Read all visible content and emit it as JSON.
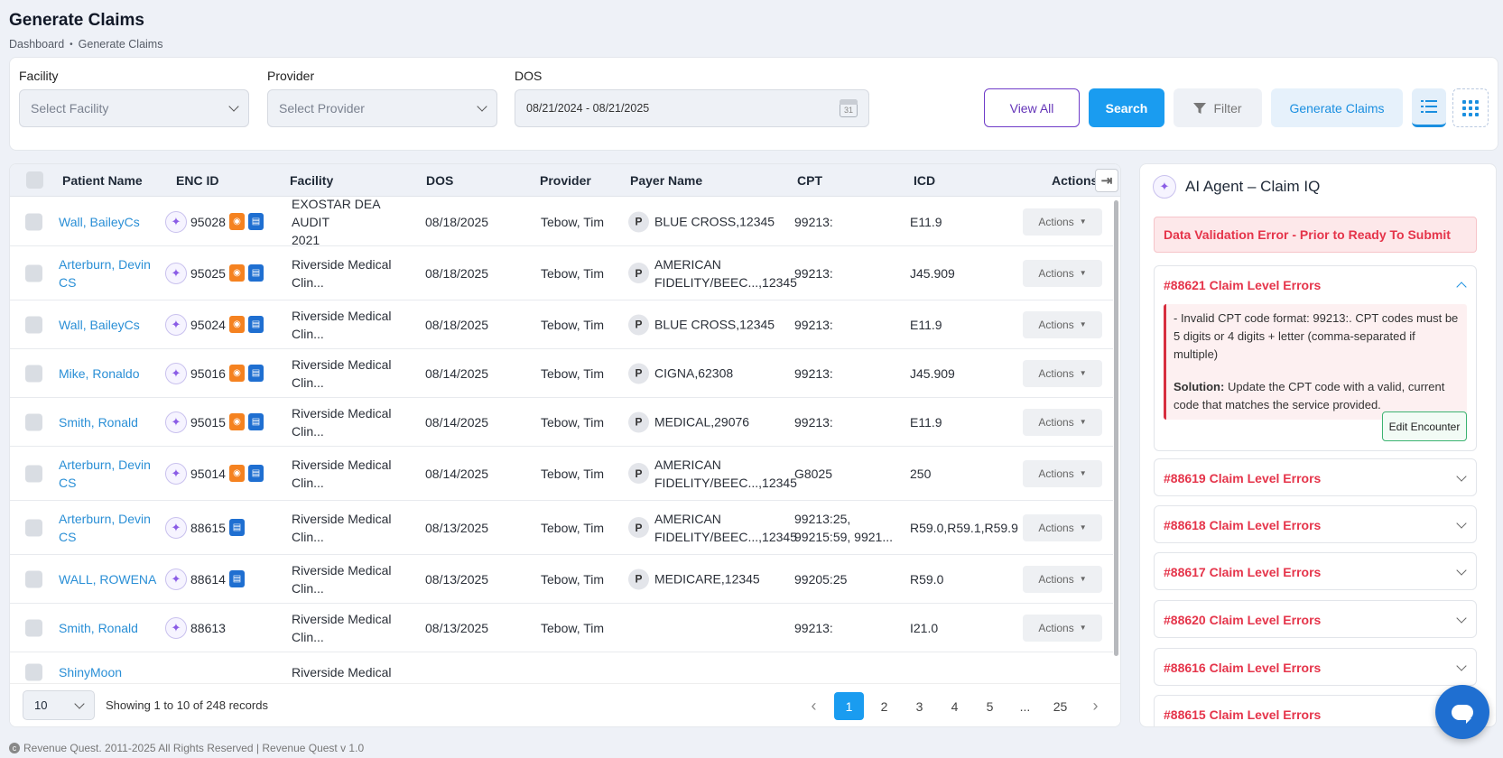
{
  "page": {
    "title": "Generate Claims",
    "breadcrumb": [
      "Dashboard",
      "Generate Claims"
    ]
  },
  "filters": {
    "facility": {
      "label": "Facility",
      "placeholder": "Select Facility"
    },
    "provider": {
      "label": "Provider",
      "placeholder": "Select Provider"
    },
    "dos": {
      "label": "DOS",
      "value": "08/21/2024 - 08/21/2025",
      "calendar_day": "31"
    },
    "buttons": {
      "view_all": "View All",
      "search": "Search",
      "filter": "Filter",
      "generate_claims": "Generate Claims"
    }
  },
  "table": {
    "headers": [
      "Patient Name",
      "ENC ID",
      "Facility",
      "DOS",
      "Provider",
      "Payer Name",
      "CPT",
      "ICD",
      "Actions"
    ],
    "action_label": "Actions",
    "rows": [
      {
        "patient": [
          "Wall, BaileyCs"
        ],
        "enc": "95028",
        "icons": [
          "orange",
          "blue"
        ],
        "facility": [
          "EXOSTAR DEA AUDIT",
          "2021"
        ],
        "dos": "08/18/2025",
        "provider": "Tebow, Tim",
        "payer": [
          "BLUE CROSS,12345"
        ],
        "cpt": [
          "99213:"
        ],
        "icd": "E11.9"
      },
      {
        "patient": [
          "Arterburn, Devin",
          "CS"
        ],
        "enc": "95025",
        "icons": [
          "orange",
          "blue"
        ],
        "facility": [
          "Riverside Medical",
          "Clin..."
        ],
        "dos": "08/18/2025",
        "provider": "Tebow, Tim",
        "payer": [
          "AMERICAN",
          "FIDELITY/BEEC...,12345"
        ],
        "cpt": [
          "99213:"
        ],
        "icd": "J45.909"
      },
      {
        "patient": [
          "Wall, BaileyCs"
        ],
        "enc": "95024",
        "icons": [
          "orange",
          "blue"
        ],
        "facility": [
          "Riverside Medical",
          "Clin..."
        ],
        "dos": "08/18/2025",
        "provider": "Tebow, Tim",
        "payer": [
          "BLUE CROSS,12345"
        ],
        "cpt": [
          "99213:"
        ],
        "icd": "E11.9"
      },
      {
        "patient": [
          "Mike, Ronaldo"
        ],
        "enc": "95016",
        "icons": [
          "orange",
          "blue"
        ],
        "facility": [
          "Riverside Medical",
          "Clin..."
        ],
        "dos": "08/14/2025",
        "provider": "Tebow, Tim",
        "payer": [
          "CIGNA,62308"
        ],
        "cpt": [
          "99213:"
        ],
        "icd": "J45.909"
      },
      {
        "patient": [
          "Smith, Ronald"
        ],
        "enc": "95015",
        "icons": [
          "orange",
          "blue"
        ],
        "facility": [
          "Riverside Medical",
          "Clin..."
        ],
        "dos": "08/14/2025",
        "provider": "Tebow, Tim",
        "payer": [
          "MEDICAL,29076"
        ],
        "cpt": [
          "99213:"
        ],
        "icd": "E11.9"
      },
      {
        "patient": [
          "Arterburn, Devin",
          "CS"
        ],
        "enc": "95014",
        "icons": [
          "orange",
          "blue"
        ],
        "facility": [
          "Riverside Medical",
          "Clin..."
        ],
        "dos": "08/14/2025",
        "provider": "Tebow, Tim",
        "payer": [
          "AMERICAN",
          "FIDELITY/BEEC...,12345"
        ],
        "cpt": [
          "G8025"
        ],
        "icd": "250"
      },
      {
        "patient": [
          "Arterburn, Devin",
          "CS"
        ],
        "enc": "88615",
        "icons": [
          "blue"
        ],
        "facility": [
          "Riverside Medical",
          "Clin..."
        ],
        "dos": "08/13/2025",
        "provider": "Tebow, Tim",
        "payer": [
          "AMERICAN",
          "FIDELITY/BEEC...,12345"
        ],
        "cpt": [
          "99213:25,",
          "99215:59, 9921..."
        ],
        "icd": "R59.0,R59.1,R59.9"
      },
      {
        "patient": [
          "WALL, ROWENA"
        ],
        "enc": "88614",
        "icons": [
          "blue"
        ],
        "facility": [
          "Riverside Medical",
          "Clin..."
        ],
        "dos": "08/13/2025",
        "provider": "Tebow, Tim",
        "payer": [
          "MEDICARE,12345"
        ],
        "cpt": [
          "99205:25"
        ],
        "icd": "R59.0"
      },
      {
        "patient": [
          "Smith, Ronald"
        ],
        "enc": "88613",
        "icons": [],
        "facility": [
          "Riverside Medical",
          "Clin..."
        ],
        "dos": "08/13/2025",
        "provider": "Tebow, Tim",
        "payer": [],
        "cpt": [
          "99213:"
        ],
        "icd": "I21.0"
      },
      {
        "patient": [
          "ShinyMoon"
        ],
        "enc": "",
        "icons": [],
        "facility": [
          "Riverside Medical"
        ],
        "dos": "",
        "provider": "",
        "payer": [],
        "cpt": [],
        "icd": ""
      }
    ],
    "footer": {
      "page_size": "10",
      "showing": "Showing 1 to 10 of 248 records",
      "pages": [
        "1",
        "2",
        "3",
        "4",
        "5",
        "...",
        "25"
      ],
      "active_page": "1"
    }
  },
  "ai_panel": {
    "title": "AI Agent – Claim IQ",
    "alert": "Data Validation Error - Prior to Ready To Submit",
    "expanded": {
      "title": "#88621 Claim Level Errors",
      "error": "- Invalid CPT code format: 99213:. CPT codes must be 5 digits or 4 digits + letter (comma-separated if multiple)",
      "solution_label": "Solution:",
      "solution": " Update the CPT code with a valid, current code that matches the service provided.",
      "edit_button": "Edit Encounter"
    },
    "collapsed": [
      "#88619 Claim Level Errors",
      "#88618 Claim Level Errors",
      "#88617 Claim Level Errors",
      "#88620 Claim Level Errors",
      "#88616 Claim Level Errors",
      "#88615 Claim Level Errors"
    ]
  },
  "footer": {
    "text": "Revenue Quest. 2011-2025 All Rights Reserved | Revenue Quest v 1.0",
    "copyright_symbol": "c"
  },
  "colors": {
    "accent": "#1a9cf0",
    "error": "#e5344a",
    "purple": "#6434b8"
  }
}
